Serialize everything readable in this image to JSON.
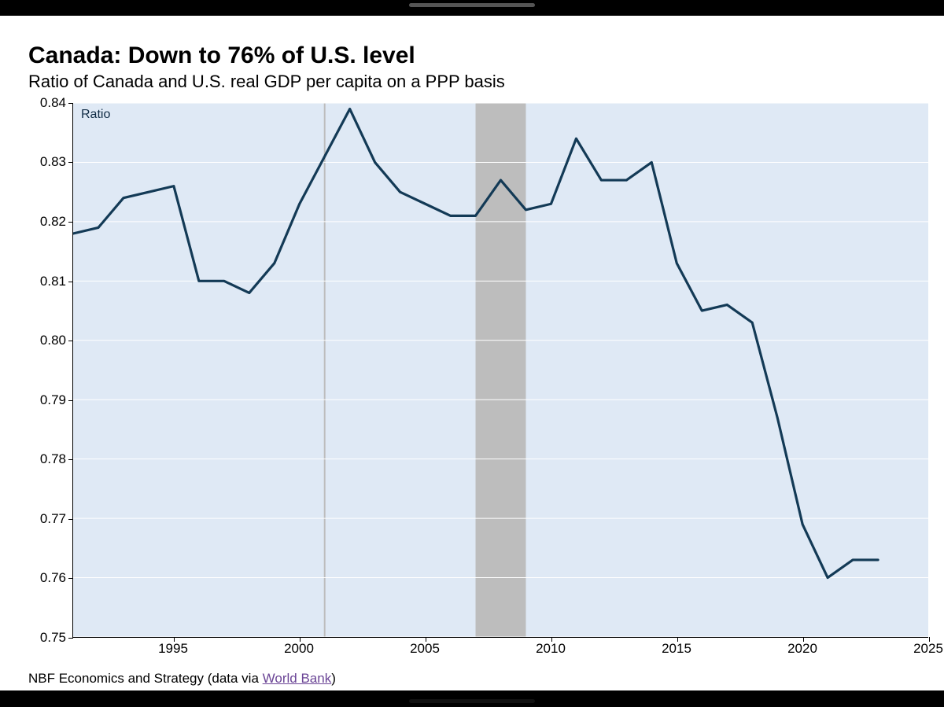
{
  "title": "Canada: Down to 76% of U.S. level",
  "subtitle": "Ratio of Canada and U.S. real GDP per capita on a PPP basis",
  "source_prefix": "NBF Economics and Strategy (data via ",
  "source_link_text": "World Bank",
  "source_suffix": ")",
  "chart": {
    "type": "line",
    "in_plot_label": "Ratio",
    "xlim": [
      1991,
      2025
    ],
    "ylim": [
      0.75,
      0.84
    ],
    "xtick_step": 5,
    "xtick_start": 1995,
    "ytick_step": 0.01,
    "decimals_y": 2,
    "plot_background": "#dfe9f5",
    "outside_background": "#ffffff",
    "axis_color": "#000000",
    "tick_font_size": 17,
    "line_color": "#133a56",
    "line_width": 3.2,
    "grid_color": "#ffffff",
    "grid_width": 1,
    "y_grid": true,
    "x_grid": false,
    "recession_band_color": "#bdbdbd",
    "thin_marker_color": "#bdbdbd",
    "thin_marker_width": 2,
    "thin_marker_year": 2001,
    "recession_bands": [
      {
        "start": 2007,
        "end": 2009
      }
    ],
    "series": {
      "years": [
        1991,
        1992,
        1993,
        1994,
        1995,
        1996,
        1997,
        1998,
        1999,
        2000,
        2001,
        2002,
        2003,
        2004,
        2005,
        2006,
        2007,
        2008,
        2009,
        2010,
        2011,
        2012,
        2013,
        2014,
        2015,
        2016,
        2017,
        2018,
        2019,
        2020,
        2021,
        2022,
        2023
      ],
      "values": [
        0.818,
        0.819,
        0.824,
        0.825,
        0.826,
        0.81,
        0.81,
        0.808,
        0.813,
        0.823,
        0.831,
        0.839,
        0.83,
        0.825,
        0.823,
        0.821,
        0.821,
        0.827,
        0.822,
        0.823,
        0.834,
        0.827,
        0.827,
        0.83,
        0.813,
        0.805,
        0.806,
        0.803,
        0.787,
        0.769,
        0.76,
        0.763,
        0.763
      ]
    }
  }
}
